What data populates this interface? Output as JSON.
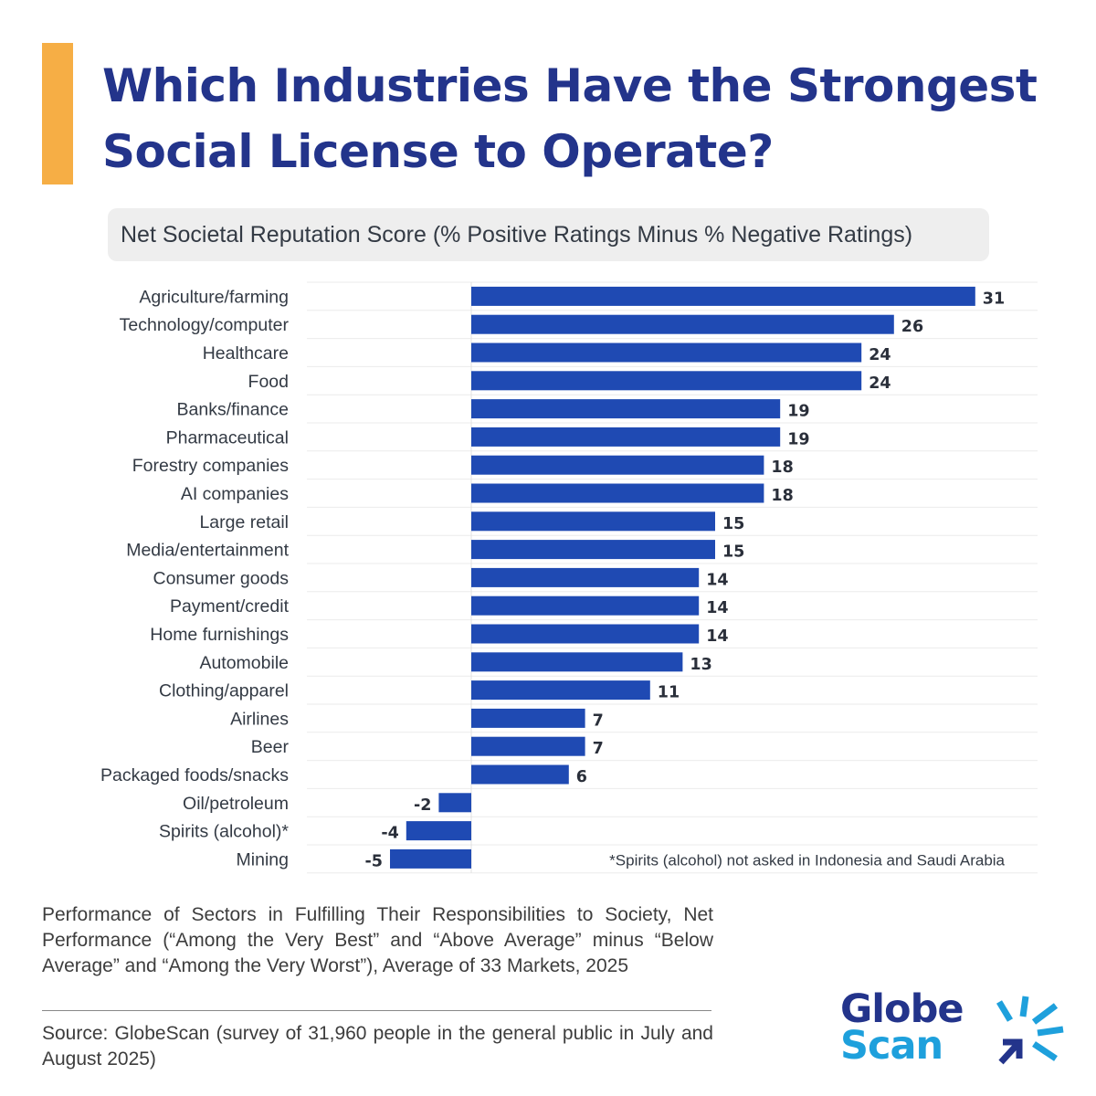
{
  "header": {
    "title_line1": "Which Industries Have the Strongest",
    "title_line2": "Social License to Operate?",
    "subtitle": "Net Societal Reputation Score (% Positive Ratings Minus % Negative Ratings)"
  },
  "chart_data": {
    "type": "bar",
    "orientation": "horizontal",
    "categories": [
      "Agriculture/farming",
      "Technology/computer",
      "Healthcare",
      "Food",
      "Banks/finance",
      "Pharmaceutical",
      "Forestry companies",
      "AI companies",
      "Large retail",
      "Media/entertainment",
      "Consumer goods",
      "Payment/credit",
      "Home furnishings",
      "Automobile",
      "Clothing/apparel",
      "Airlines",
      "Beer",
      "Packaged foods/snacks",
      "Oil/petroleum",
      "Spirits (alcohol)*",
      "Mining"
    ],
    "values": [
      31,
      26,
      24,
      24,
      19,
      19,
      18,
      18,
      15,
      15,
      14,
      14,
      14,
      13,
      11,
      7,
      7,
      6,
      -2,
      -4,
      -5
    ],
    "xlim": [
      -5,
      34
    ],
    "bar_color": "#1F4AB3",
    "annotation": "*Spirits (alcohol) not asked in Indonesia and Saudi Arabia"
  },
  "footnote": "Performance of Sectors in Fulfilling Their Responsibilities to Society, Net Performance (“Among the Very Best” and “Above Average” minus “Below Average” and “Among the Very Worst”), Average of 33 Markets, 2025",
  "source": "Source: GlobeScan (survey of 31,960 people in the general public in July and August 2025)",
  "logo": {
    "line1": "Globe",
    "line2": "Scan"
  },
  "colors": {
    "title": "#23348B",
    "accent": "#F6AE45",
    "bar": "#1F4AB3",
    "logo_light": "#1EA0DC"
  }
}
